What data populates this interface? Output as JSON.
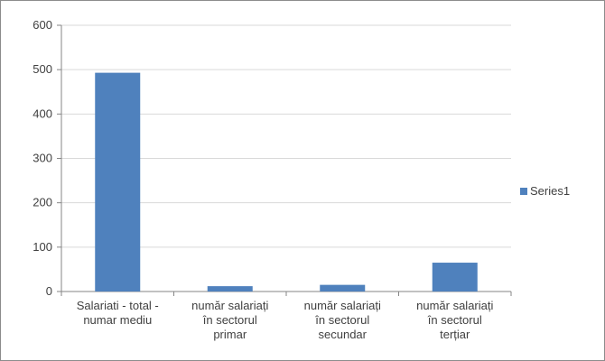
{
  "chart_data": {
    "type": "bar",
    "categories": [
      [
        "Salariati - total -",
        "numar mediu"
      ],
      [
        "număr  salariați",
        "în sectorul",
        "primar"
      ],
      [
        "număr  salariați",
        "în sectorul",
        "secundar"
      ],
      [
        "număr  salariați",
        "în sectorul",
        "terțiar"
      ]
    ],
    "series": [
      {
        "name": "Series1",
        "values": [
          493,
          12,
          15,
          65
        ],
        "color": "#4f81bd"
      }
    ],
    "ylim": [
      0,
      600
    ],
    "yticks": [
      0,
      100,
      200,
      300,
      400,
      500,
      600
    ],
    "grid": true,
    "legend": "right",
    "gridColor": "#d9d9d9",
    "axisColor": "#868686"
  }
}
